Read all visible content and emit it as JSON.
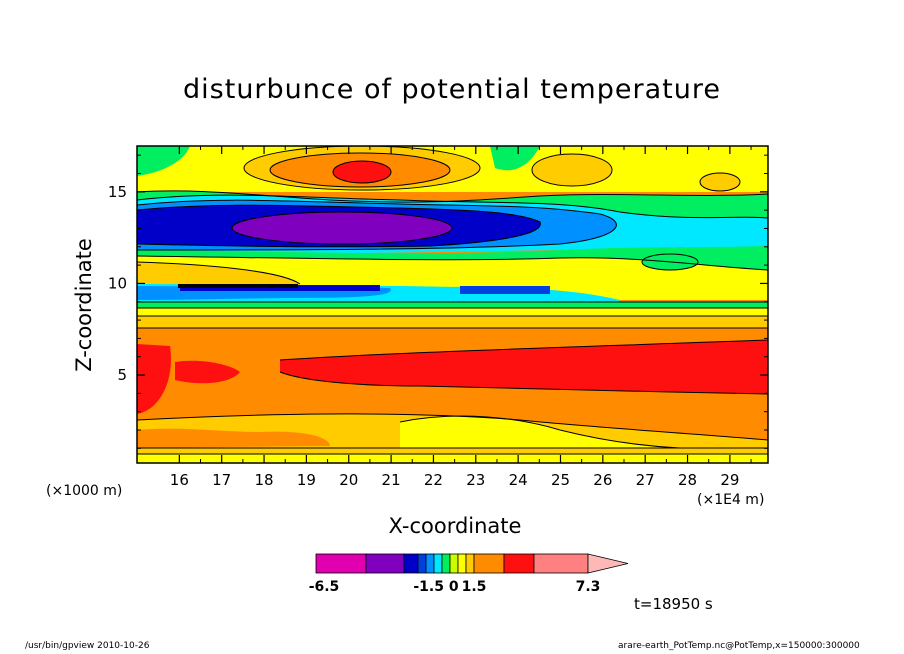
{
  "chart_data": {
    "type": "heatmap",
    "title": "disturbunce of potential temperature",
    "xlabel": "X-coordinate",
    "ylabel": "Z-coordinate",
    "x_unit_left": "(×1000 m)",
    "x_unit_right": "(×1E4 m)",
    "x_ticks": [
      "16",
      "17",
      "18",
      "19",
      "20",
      "21",
      "22",
      "23",
      "24",
      "25",
      "26",
      "27",
      "28",
      "29"
    ],
    "y_ticks": [
      "5",
      "10",
      "15"
    ],
    "xlim": [
      15.0,
      29.9
    ],
    "ylim": [
      0.2,
      17.5
    ],
    "colorbar": {
      "labels": [
        "-6.5",
        "-1.5 0",
        "1.5",
        "7.3"
      ],
      "colors": [
        "#e000b0",
        "#8000c0",
        "#0000c8",
        "#0040e0",
        "#0090ff",
        "#00e8ff",
        "#00ee60",
        "#c8ff00",
        "#ffff00",
        "#ffcc00",
        "#ff8c00",
        "#ff1010",
        "#ff8080",
        "#ffb8b8"
      ]
    },
    "time_label": "t=18950 s"
  },
  "footer": {
    "left": "/usr/bin/gpview   2010-10-26",
    "right": "arare-earth_PotTemp.nc@PotTemp,x=150000:300000"
  }
}
